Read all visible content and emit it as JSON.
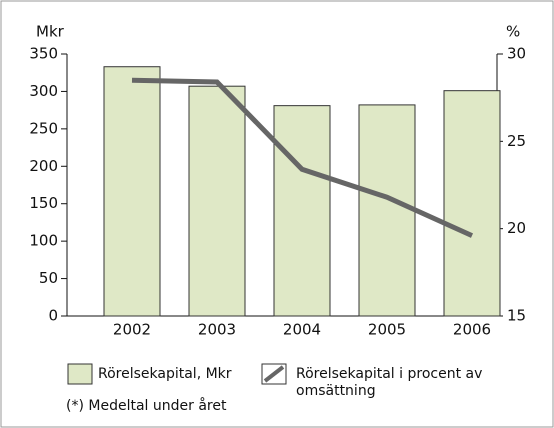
{
  "chart_data": {
    "type": "bar-line",
    "y_label": "Mkr",
    "y2_label": "%",
    "categories": [
      "2002",
      "2003",
      "2004",
      "2005",
      "2006"
    ],
    "series": [
      {
        "name": "Rörelsekapital, Mkr",
        "type": "bar",
        "color": "#dfe8c6",
        "values": [
          333,
          307,
          281,
          282,
          301
        ]
      },
      {
        "name": "Rörelsekapital i procent av omsättning",
        "type": "line",
        "axis": "y2",
        "color": "#666666",
        "values": [
          28.5,
          28.4,
          23.4,
          21.8,
          19.6
        ]
      }
    ],
    "ylim": [
      0,
      350
    ],
    "yticks": [
      0,
      50,
      100,
      150,
      200,
      250,
      300,
      350
    ],
    "y2lim": [
      15,
      30
    ],
    "y2ticks": [
      15,
      20,
      25,
      30
    ],
    "note": "(*) Medeltal under året"
  }
}
